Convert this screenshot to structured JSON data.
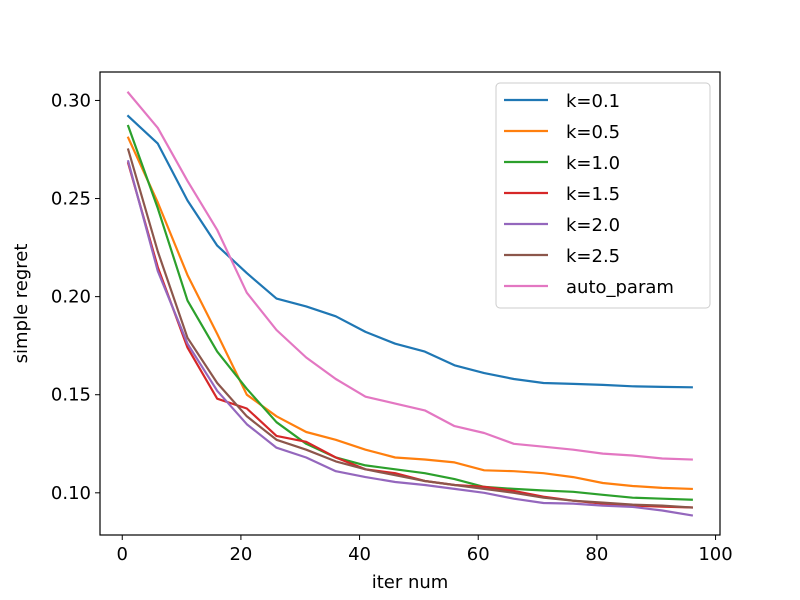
{
  "chart_data": {
    "type": "line",
    "title": "",
    "xlabel": "iter num",
    "ylabel": "simple regret",
    "xlim": [
      -3.75,
      100.75
    ],
    "ylim": [
      0.0785,
      0.3145
    ],
    "xticks": [
      0,
      20,
      40,
      60,
      80,
      100
    ],
    "yticks": [
      0.1,
      0.15,
      0.2,
      0.25,
      0.3
    ],
    "ytick_labels": [
      "0.10",
      "0.15",
      "0.20",
      "0.25",
      "0.30"
    ],
    "grid": false,
    "legend_position": "upper right",
    "x": [
      1,
      6,
      11,
      16,
      21,
      26,
      31,
      36,
      41,
      46,
      51,
      56,
      61,
      66,
      71,
      76,
      81,
      86,
      91,
      96
    ],
    "series": [
      {
        "name": "k=0.1",
        "color": "#1f77b4",
        "values": [
          0.292,
          0.278,
          0.249,
          0.226,
          0.212,
          0.199,
          0.195,
          0.19,
          0.182,
          0.176,
          0.172,
          0.165,
          0.161,
          0.158,
          0.156,
          0.1555,
          0.155,
          0.1543,
          0.154,
          0.1538
        ]
      },
      {
        "name": "k=0.5",
        "color": "#ff7f0e",
        "values": [
          0.281,
          0.248,
          0.211,
          0.181,
          0.15,
          0.139,
          0.131,
          0.127,
          0.122,
          0.118,
          0.117,
          0.1155,
          0.1115,
          0.111,
          0.11,
          0.108,
          0.105,
          0.1035,
          0.1025,
          0.102
        ]
      },
      {
        "name": "k=1.0",
        "color": "#2ca02c",
        "values": [
          0.287,
          0.245,
          0.198,
          0.172,
          0.153,
          0.136,
          0.125,
          0.118,
          0.114,
          0.112,
          0.11,
          0.107,
          0.103,
          0.102,
          0.1012,
          0.1005,
          0.099,
          0.0975,
          0.097,
          0.0965
        ]
      },
      {
        "name": "k=1.5",
        "color": "#d62728",
        "values": [
          0.268,
          0.215,
          0.174,
          0.148,
          0.143,
          0.129,
          0.126,
          0.118,
          0.112,
          0.11,
          0.106,
          0.104,
          0.103,
          0.101,
          0.098,
          0.096,
          0.0945,
          0.0935,
          0.093,
          0.0925
        ]
      },
      {
        "name": "k=2.0",
        "color": "#9467bd",
        "values": [
          0.269,
          0.213,
          0.176,
          0.152,
          0.135,
          0.123,
          0.118,
          0.111,
          0.108,
          0.1055,
          0.104,
          0.102,
          0.1,
          0.097,
          0.0948,
          0.0945,
          0.0935,
          0.0928,
          0.091,
          0.0885
        ]
      },
      {
        "name": "k=2.5",
        "color": "#8c564b",
        "values": [
          0.275,
          0.223,
          0.179,
          0.156,
          0.139,
          0.127,
          0.122,
          0.116,
          0.112,
          0.109,
          0.106,
          0.104,
          0.102,
          0.1,
          0.0975,
          0.096,
          0.095,
          0.094,
          0.0935,
          0.0925
        ]
      },
      {
        "name": "auto_param",
        "color": "#e377c2",
        "values": [
          0.304,
          0.286,
          0.259,
          0.234,
          0.202,
          0.183,
          0.169,
          0.158,
          0.149,
          0.1455,
          0.142,
          0.134,
          0.1305,
          0.125,
          0.1235,
          0.122,
          0.12,
          0.119,
          0.1175,
          0.117
        ]
      }
    ]
  }
}
